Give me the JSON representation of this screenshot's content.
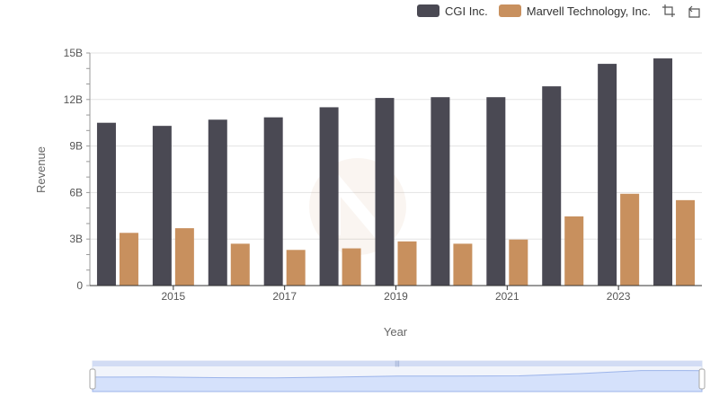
{
  "chart_data": {
    "type": "bar",
    "xlabel": "Year",
    "ylabel": "Revenue",
    "categories": [
      "2014",
      "2015",
      "2016",
      "2017",
      "2018",
      "2019",
      "2020",
      "2021",
      "2022",
      "2023",
      "2024"
    ],
    "x_tick_labels": [
      "2015",
      "2017",
      "2019",
      "2021",
      "2023"
    ],
    "y_tick_labels": [
      "0",
      "3B",
      "6B",
      "9B",
      "12B",
      "15B"
    ],
    "ylim": [
      0,
      15000000000
    ],
    "grid": true,
    "legend_position": "top-right",
    "series": [
      {
        "name": "CGI Inc.",
        "color": "#4a4953",
        "values": [
          10500000000,
          10300000000,
          10700000000,
          10850000000,
          11500000000,
          12100000000,
          12150000000,
          12150000000,
          12850000000,
          14300000000,
          14650000000
        ]
      },
      {
        "name": "Marvell Technology, Inc.",
        "color": "#c8905e",
        "values": [
          3400000000,
          3700000000,
          2700000000,
          2300000000,
          2400000000,
          2850000000,
          2700000000,
          2970000000,
          4460000000,
          5920000000,
          5510000000
        ]
      }
    ]
  },
  "toolbar": {
    "zoom_icon": "zoom-area-icon",
    "reset_icon": "restore-icon"
  }
}
